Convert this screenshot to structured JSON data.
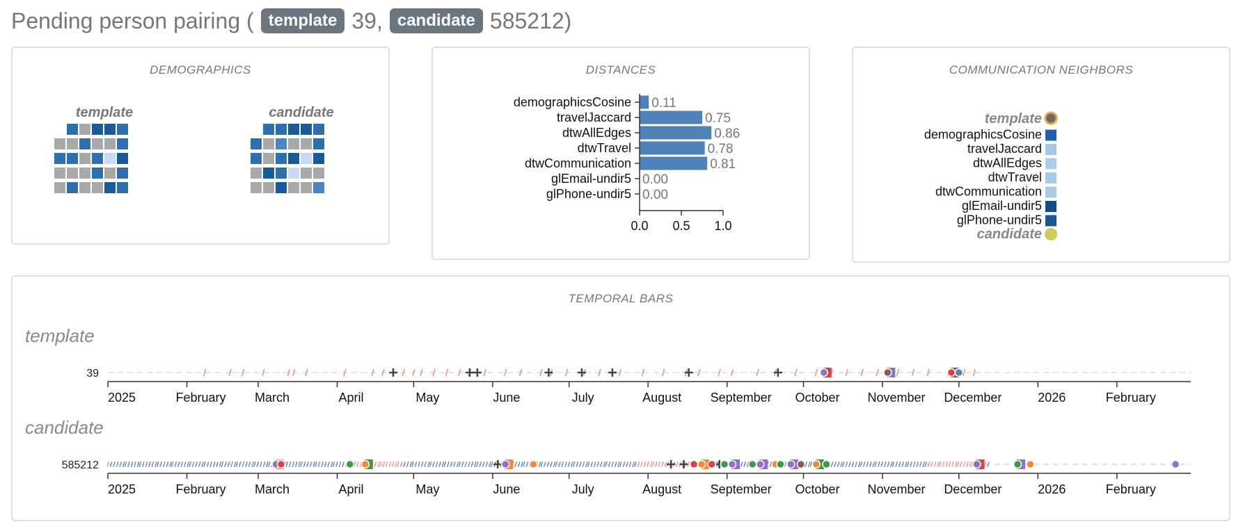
{
  "header": {
    "prefix": "Pending person pairing (",
    "template_badge": "template",
    "template_id": "39,",
    "candidate_badge": "candidate",
    "candidate_id": "585212)",
    "suffix": ""
  },
  "demographics": {
    "title": "DEMOGRAPHICS",
    "template_label": "template",
    "candidate_label": "candidate",
    "colors": {
      "dark": "#1b5a99",
      "mid": "#2e6fb0",
      "medium": "#4a87c2",
      "light": "#c6dbef",
      "gray": "#a9a9a9",
      "none": "#ffffff"
    },
    "template_grid": [
      [
        "none",
        "mid",
        "gray",
        "dark",
        "dark",
        "mid"
      ],
      [
        "gray",
        "gray",
        "mid",
        "gray",
        "gray",
        "mid"
      ],
      [
        "mid",
        "mid",
        "gray",
        "mid",
        "light",
        "dark"
      ],
      [
        "gray",
        "gray",
        "gray",
        "mid",
        "gray",
        "mid"
      ],
      [
        "gray",
        "mid",
        "gray",
        "gray",
        "dark",
        "mid"
      ]
    ],
    "candidate_grid": [
      [
        "none",
        "mid",
        "mid",
        "dark",
        "dark",
        "mid"
      ],
      [
        "mid",
        "gray",
        "medium",
        "gray",
        "gray",
        "mid"
      ],
      [
        "mid",
        "gray",
        "mid",
        "dark",
        "light",
        "dark"
      ],
      [
        "gray",
        "dark",
        "mid",
        "light",
        "gray",
        "gray"
      ],
      [
        "gray",
        "gray",
        "dark",
        "gray",
        "gray",
        "medium"
      ]
    ]
  },
  "distances": {
    "title": "DISTANCES",
    "bar_color": "#4d81b8",
    "chart_data": {
      "type": "bar",
      "categories": [
        "demographicsCosine",
        "travelJaccard",
        "dtwAllEdges",
        "dtwTravel",
        "dtwCommunication",
        "glEmail-undir5",
        "glPhone-undir5"
      ],
      "values": [
        0.11,
        0.75,
        0.86,
        0.78,
        0.81,
        0.0,
        0.0
      ],
      "value_labels": [
        "0.11",
        "0.75",
        "0.86",
        "0.78",
        "0.81",
        "0.00",
        "0.00"
      ],
      "xlim": [
        0,
        1.0
      ],
      "xticks": [
        "0.0",
        "0.5",
        "1.0"
      ]
    }
  },
  "neighbors": {
    "title": "COMMUNICATION NEIGHBORS",
    "template_label": "template",
    "candidate_label": "candidate",
    "template_color": "#6b6b6b",
    "template_ring": "#e6a243",
    "candidate_color": "#c7d15c",
    "candidate_ring": "#d4c65a",
    "items": [
      {
        "label": "demographicsCosine",
        "color": "#2060a8"
      },
      {
        "label": "travelJaccard",
        "color": "#a6c8e4"
      },
      {
        "label": "dtwAllEdges",
        "color": "#afcde6"
      },
      {
        "label": "dtwTravel",
        "color": "#a9cae4"
      },
      {
        "label": "dtwCommunication",
        "color": "#a9cae4"
      },
      {
        "label": "glEmail-undir5",
        "color": "#114b8c"
      },
      {
        "label": "glPhone-undir5",
        "color": "#1a5598"
      }
    ]
  },
  "temporal": {
    "title": "TEMPORAL BARS",
    "month_labels": [
      "2025",
      "February",
      "March",
      "April",
      "May",
      "June",
      "July",
      "August",
      "September",
      "October",
      "November",
      "December",
      "2026",
      "February"
    ],
    "colors": {
      "email": "#e8928a",
      "travel": "#5b82b6",
      "plus": "#444444",
      "orange": "#f08a3a",
      "red": "#d44545",
      "green": "#3f9a45",
      "purple": "#9370c8",
      "brown": "#8b5a52"
    },
    "template": {
      "label": "template",
      "id": "39",
      "email_days": [
        38,
        48,
        53,
        61,
        71,
        73,
        78,
        93,
        104,
        108,
        116,
        120,
        123,
        128,
        133,
        138,
        142,
        148,
        156,
        162,
        170,
        174,
        180,
        187,
        193,
        201,
        210,
        218,
        227,
        232,
        240,
        245,
        255,
        262,
        270,
        278,
        284,
        290,
        296,
        302,
        310,
        316,
        322,
        330,
        336,
        340
      ],
      "plus_days": [
        112,
        142,
        145,
        173,
        186,
        198,
        228,
        263
      ],
      "events": [
        {
          "day": 281,
          "type": "purple",
          "square": "red"
        },
        {
          "day": 306,
          "type": "brown",
          "square": "purple"
        },
        {
          "day": 331,
          "type": "red",
          "square": "brown"
        },
        {
          "day": 334,
          "type": "travel",
          "square": null
        }
      ]
    },
    "candidate": {
      "label": "candidate",
      "id": "585212",
      "range_days": [
        0,
        345
      ],
      "plus_days": [
        153,
        221,
        226,
        240
      ],
      "events": [
        {
          "day": 66,
          "type": "purple",
          "square": "orange"
        },
        {
          "day": 68,
          "type": "red",
          "square": null
        },
        {
          "day": 95,
          "type": "green",
          "square": null
        },
        {
          "day": 101,
          "type": "orange",
          "square": "green"
        },
        {
          "day": 156,
          "type": "purple",
          "square": "orange"
        },
        {
          "day": 167,
          "type": "orange",
          "square": null
        },
        {
          "day": 230,
          "type": "red",
          "square": null
        },
        {
          "day": 233,
          "type": "orange",
          "square": "orange"
        },
        {
          "day": 237,
          "type": "red",
          "square": null
        },
        {
          "day": 242,
          "type": "green",
          "square": null
        },
        {
          "day": 245,
          "type": "purple",
          "square": "purple"
        },
        {
          "day": 253,
          "type": "green",
          "square": null
        },
        {
          "day": 256,
          "type": "purple",
          "square": "purple"
        },
        {
          "day": 262,
          "type": "orange",
          "square": null
        },
        {
          "day": 264,
          "type": "green",
          "square": null
        },
        {
          "day": 268,
          "type": "purple",
          "square": "purple"
        },
        {
          "day": 272,
          "type": "brown",
          "square": null
        },
        {
          "day": 278,
          "type": "orange",
          "square": "green"
        },
        {
          "day": 282,
          "type": "green",
          "square": null
        },
        {
          "day": 341,
          "type": "purple",
          "square": "red"
        },
        {
          "day": 357,
          "type": "green",
          "square": "purple"
        },
        {
          "day": 362,
          "type": "orange",
          "square": null
        },
        {
          "day": 419,
          "type": "purple",
          "square": null
        }
      ]
    }
  }
}
